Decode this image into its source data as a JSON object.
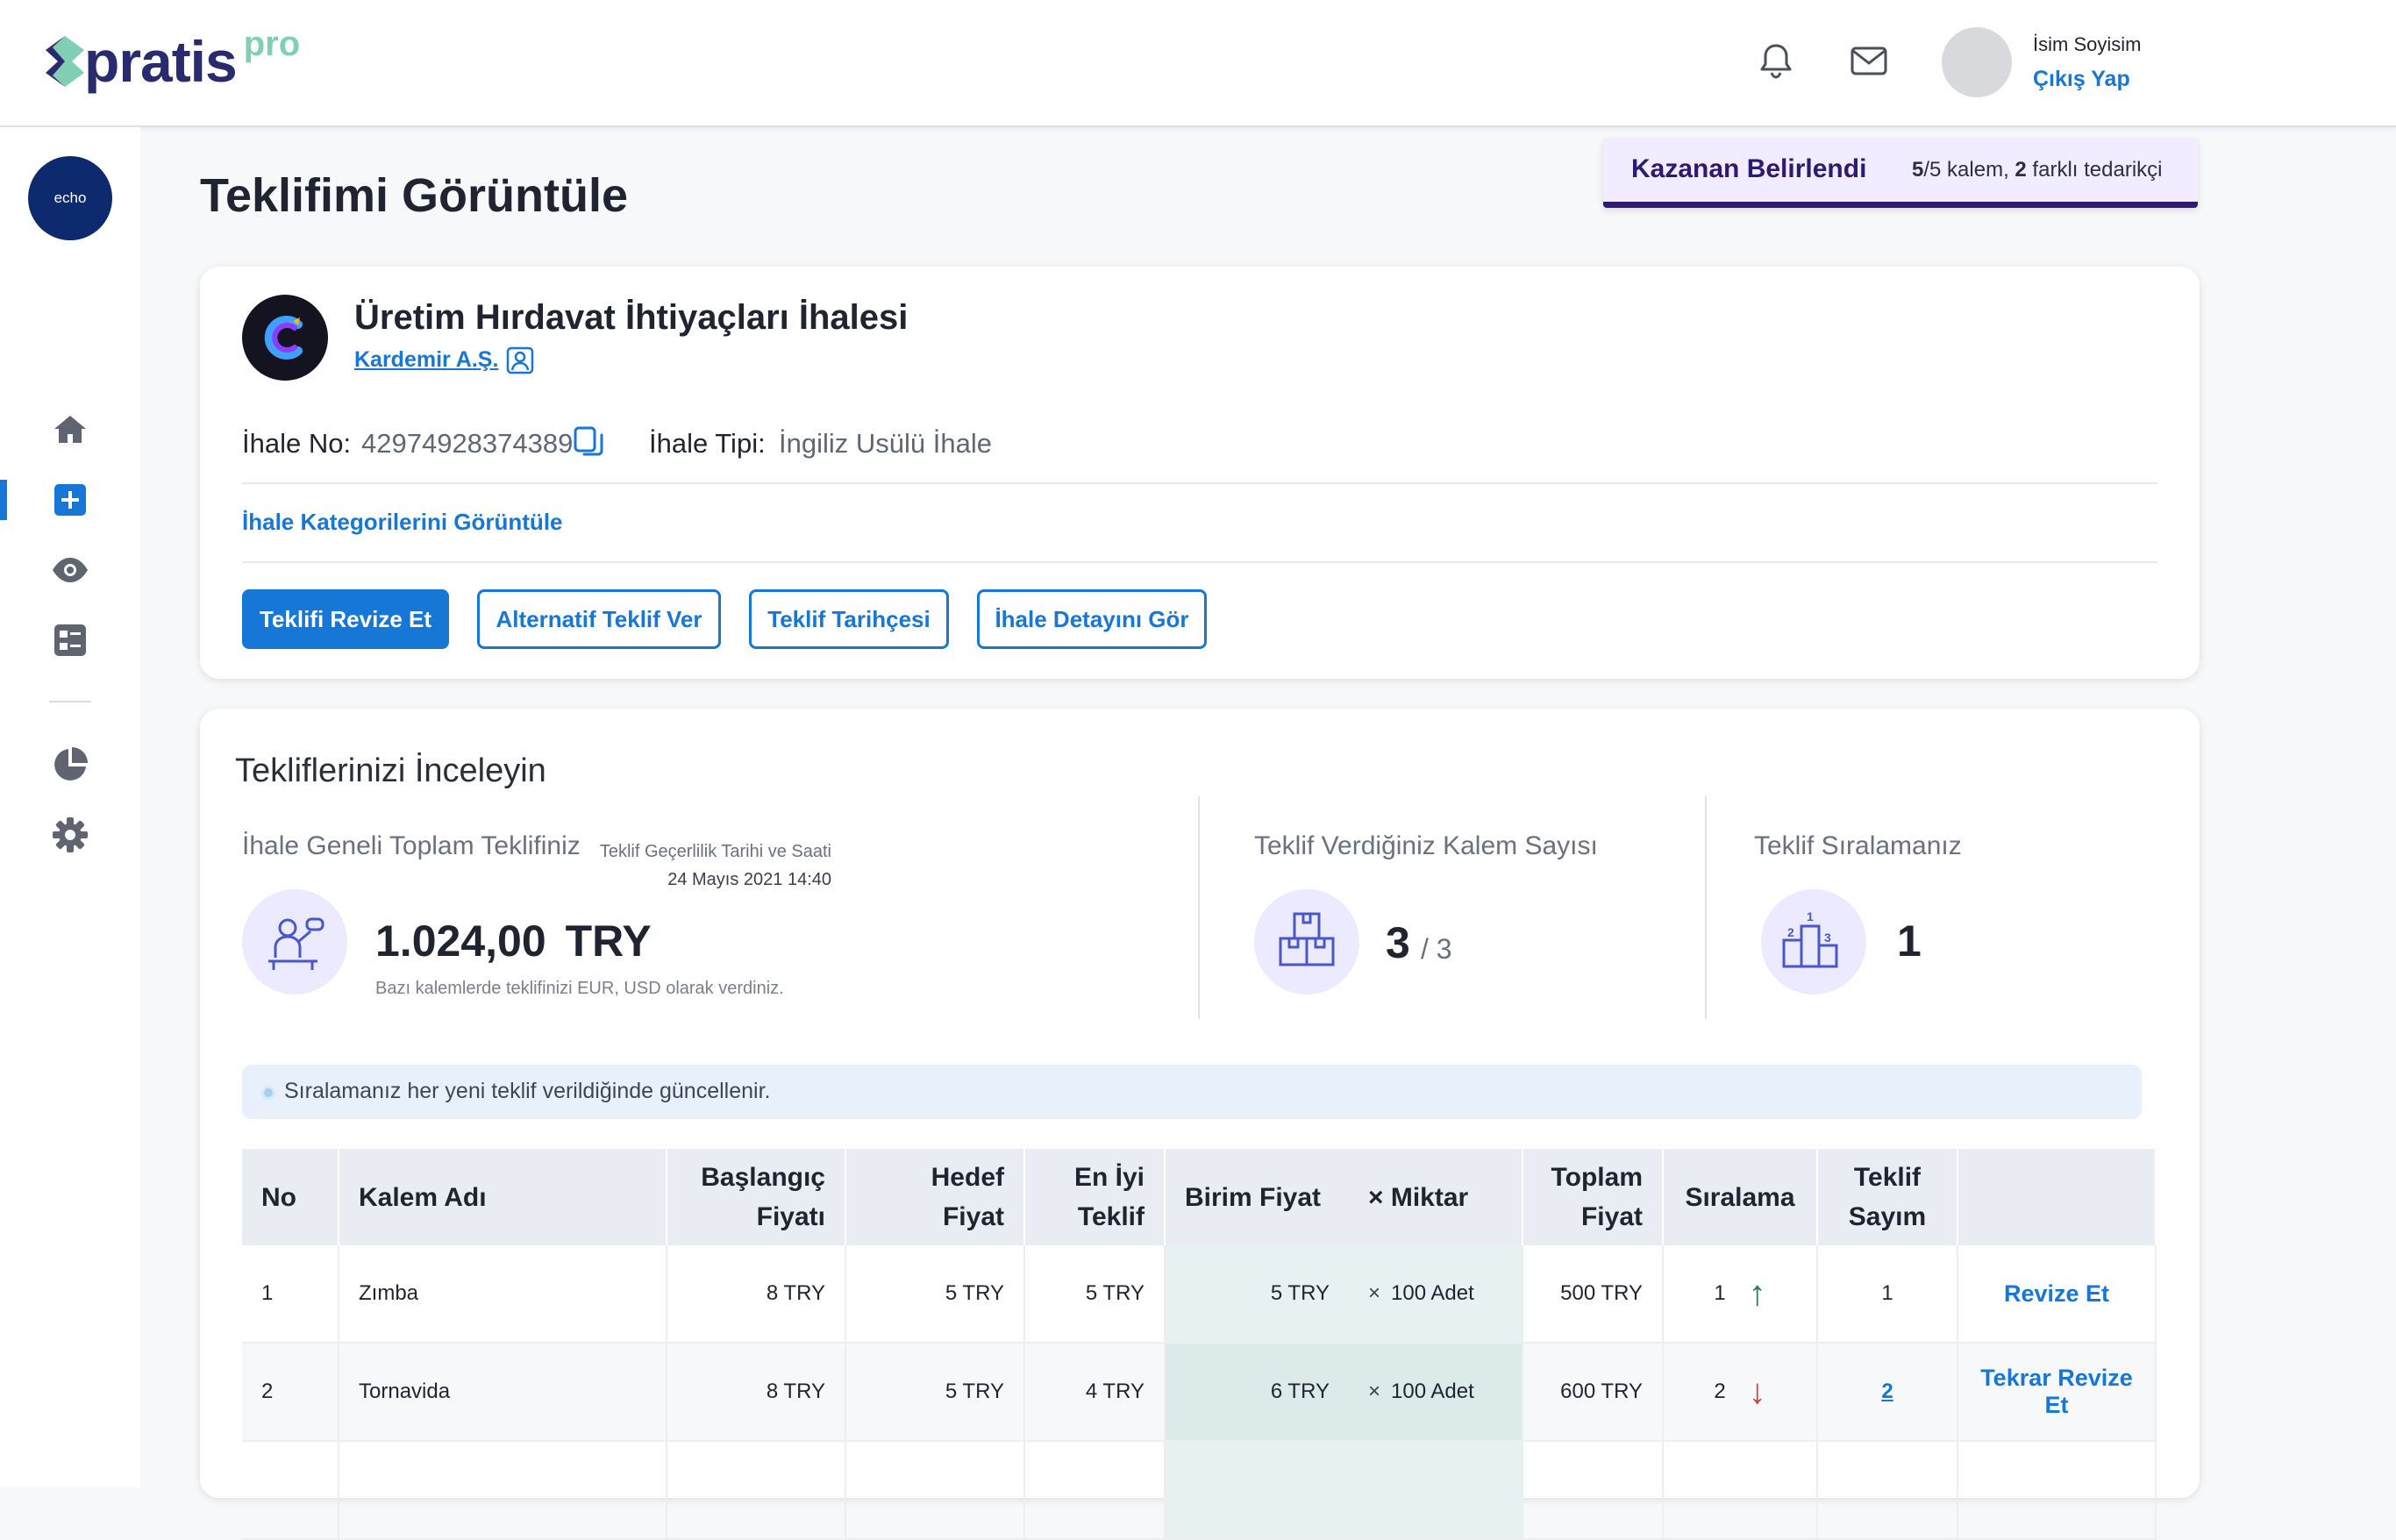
{
  "header": {
    "logo_word": "pratis",
    "logo_pro": "pro",
    "user_name": "İsim Soyisim",
    "logout_label": "Çıkış Yap"
  },
  "sidebar": {
    "brand": "echo",
    "items": [
      "home-icon",
      "add-icon",
      "eye-icon",
      "list-icon",
      "pie-chart-icon",
      "gear-icon"
    ]
  },
  "page": {
    "title": "Teklifimi Görüntüle"
  },
  "winner_banner": {
    "title": "Kazanan Belirlendi",
    "items_bold": "5",
    "items_text": "/5 kalem, ",
    "suppliers_bold": "2",
    "suppliers_text": " farklı tedarikçi"
  },
  "tender": {
    "title": "Üretim Hırdavat İhtiyaçları İhalesi",
    "company": "Kardemir A.Ş.",
    "no_label": "İhale No:",
    "no_value": "42974928374389",
    "type_label": "İhale Tipi:",
    "type_value": "İngiliz Usülü İhale",
    "categories_link": "İhale Kategorilerini Görüntüle",
    "buttons": {
      "revise": "Teklifi Revize Et",
      "alternative": "Alternatif Teklif Ver",
      "history": "Teklif Tarihçesi",
      "details": "İhale Detayını Gör"
    }
  },
  "review": {
    "title": "Tekliflerinizi İnceleyin",
    "total_label": "İhale Geneli Toplam Teklifiniz",
    "validity_label": "Teklif Geçerlilik Tarihi ve Saati",
    "validity_value": "24 Mayıs 2021   14:40",
    "total_amount": "1.024,00",
    "total_currency": "TRY",
    "total_note": "Bazı kalemlerde teklifinizi EUR, USD olarak verdiniz.",
    "items_label": "Teklif Verdiğiniz Kalem Sayısı",
    "items_count": "3",
    "items_of": "/ 3",
    "rank_label": "Teklif Sıralamanız",
    "rank_value": "1",
    "info_text": "Sıralamanız her yeni teklif verildiğinde güncellenir."
  },
  "table": {
    "headers": {
      "no": "No",
      "name": "Kalem Adı",
      "start_l1": "Başlangıç",
      "start_l2": "Fiyatı",
      "target_l1": "Hedef",
      "target_l2": "Fiyat",
      "best_l1": "En İyi",
      "best_l2": "Teklif",
      "unit": "Birim Fiyat",
      "qty": "× Miktar",
      "total_l1": "Toplam",
      "total_l2": "Fiyat",
      "rank": "Sıralama",
      "count_l1": "Teklif",
      "count_l2": "Sayım"
    },
    "rows": [
      {
        "no": "1",
        "name": "Zımba",
        "start": "8 TRY",
        "target": "5 TRY",
        "best": "5 TRY",
        "unit": "5 TRY",
        "qty": "100 Adet",
        "total": "500 TRY",
        "rank": "1",
        "rank_dir": "up",
        "count": "1",
        "action": "Revize Et"
      },
      {
        "no": "2",
        "name": "Tornavida",
        "start": "8 TRY",
        "target": "5 TRY",
        "best": "4 TRY",
        "unit": "6 TRY",
        "qty": "100 Adet",
        "total": "600 TRY",
        "rank": "2",
        "rank_dir": "down",
        "count": "2",
        "action": "Tekrar Revize Et"
      }
    ],
    "times_symbol": "×"
  },
  "colors": {
    "primary": "#1677d6",
    "navy": "#2d1b72",
    "up": "#1e7a5a",
    "down": "#d0412b"
  }
}
